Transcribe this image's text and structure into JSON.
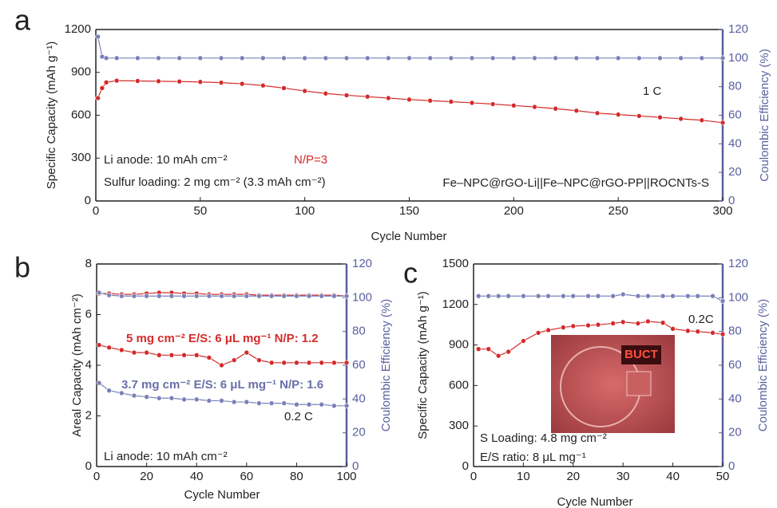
{
  "chart_data": [
    {
      "type": "line",
      "panel_label": "a",
      "xlabel": "Cycle Number",
      "ylabel": "Specific Capacity (mAh g⁻¹)",
      "y2label": "Coulombic Efficiency (%)",
      "x": [
        1,
        3,
        5,
        10,
        20,
        30,
        40,
        50,
        60,
        70,
        80,
        90,
        100,
        110,
        120,
        130,
        140,
        150,
        160,
        170,
        180,
        190,
        200,
        210,
        220,
        230,
        240,
        250,
        260,
        270,
        280,
        290,
        300
      ],
      "series": [
        {
          "color": "#d42a2a",
          "values": [
            720,
            790,
            830,
            842,
            840,
            838,
            836,
            833,
            828,
            820,
            808,
            790,
            770,
            752,
            740,
            730,
            720,
            710,
            702,
            695,
            687,
            678,
            668,
            658,
            646,
            632,
            615,
            605,
            595,
            585,
            575,
            565,
            548
          ]
        },
        {
          "color": "#7b80b8",
          "axis": "y2",
          "values": [
            115,
            101,
            100,
            100,
            100,
            100,
            100,
            100,
            100,
            100,
            100,
            100,
            100,
            100,
            100,
            100,
            100,
            100,
            100,
            100,
            100,
            100,
            100,
            100,
            100,
            100,
            100,
            100,
            100,
            100,
            100,
            100,
            100
          ]
        }
      ],
      "xlim": [
        0,
        300
      ],
      "xticks": [
        0,
        50,
        100,
        150,
        200,
        250,
        300
      ],
      "ylim": [
        0,
        1200
      ],
      "yticks": [
        0,
        300,
        600,
        900,
        1200
      ],
      "y2lim": [
        0,
        120
      ],
      "y2ticks": [
        0,
        20,
        40,
        60,
        80,
        100,
        120
      ],
      "annotations": [
        {
          "text": "1 C",
          "color": "#222222"
        },
        {
          "text": "Li anode: 10 mAh cm⁻²",
          "color": "#222222"
        },
        {
          "text": "N/P=3",
          "color": "#d42a2a"
        },
        {
          "text": "Sulfur loading: 2 mg cm⁻² (3.3 mAh cm⁻²)",
          "color": "#222222"
        },
        {
          "text": "Fe–NPC@rGO-Li||Fe–NPC@rGO-PP||ROCNTs-S",
          "color": "#222222"
        }
      ]
    },
    {
      "type": "line",
      "panel_label": "b",
      "xlabel": "Cycle Number",
      "ylabel": "Areal Capacity (mAh cm⁻²)",
      "y2label": "Coulombic Efficiency (%)",
      "x": [
        1,
        5,
        10,
        15,
        20,
        25,
        30,
        35,
        40,
        45,
        50,
        55,
        60,
        65,
        70,
        75,
        80,
        85,
        90,
        95,
        100
      ],
      "series": [
        {
          "color": "#d42a2a",
          "values": [
            4.8,
            4.7,
            4.6,
            4.5,
            4.5,
            4.4,
            4.4,
            4.4,
            4.4,
            4.3,
            4.0,
            4.2,
            4.5,
            4.2,
            4.1,
            4.1,
            4.1,
            4.1,
            4.1,
            4.1,
            4.1
          ]
        },
        {
          "color": "#7b80b8",
          "values": [
            3.3,
            3.0,
            2.9,
            2.8,
            2.75,
            2.7,
            2.7,
            2.65,
            2.65,
            2.6,
            2.6,
            2.55,
            2.55,
            2.5,
            2.5,
            2.5,
            2.45,
            2.45,
            2.45,
            2.4,
            2.4
          ]
        },
        {
          "color": "#d42a2a",
          "axis": "y2",
          "values": [
            102.5,
            102.5,
            102,
            102,
            102.5,
            103,
            103,
            102.5,
            102.5,
            102,
            102,
            102,
            102,
            101.5,
            101.5,
            101.5,
            101.5,
            101.5,
            101.5,
            101.5,
            101
          ]
        },
        {
          "color": "#7b80b8",
          "axis": "y2",
          "values": [
            103,
            101.5,
            101,
            101,
            101,
            101,
            101,
            101,
            101,
            101,
            101,
            101,
            101,
            101,
            101,
            101,
            101,
            101,
            101,
            101,
            101
          ]
        }
      ],
      "xlim": [
        0,
        100
      ],
      "xticks": [
        0,
        20,
        40,
        60,
        80,
        100
      ],
      "ylim": [
        0,
        8
      ],
      "yticks": [
        0,
        2,
        4,
        6,
        8
      ],
      "y2lim": [
        0,
        120
      ],
      "y2ticks": [
        0,
        20,
        40,
        60,
        80,
        100,
        120
      ],
      "annotations": [
        {
          "text": "5 mg cm⁻² E/S: 6 μL mg⁻¹ N/P: 1.2",
          "color": "#d42a2a"
        },
        {
          "text": "3.7 mg cm⁻² E/S: 6 μL mg⁻¹ N/P: 1.6",
          "color": "#6a6fa8"
        },
        {
          "text": "0.2 C",
          "color": "#222222"
        },
        {
          "text": "Li anode: 10 mAh cm⁻²",
          "color": "#222222"
        }
      ]
    },
    {
      "type": "line",
      "panel_label": "c",
      "xlabel": "Cycle Number",
      "ylabel": "Specific Capacity (mAh g⁻¹)",
      "y2label": "Coulombic Efficiency (%)",
      "x": [
        1,
        3,
        5,
        7,
        10,
        13,
        15,
        18,
        20,
        23,
        25,
        28,
        30,
        33,
        35,
        38,
        40,
        43,
        45,
        48,
        50
      ],
      "series": [
        {
          "color": "#d42a2a",
          "values": [
            870,
            870,
            820,
            850,
            930,
            990,
            1010,
            1030,
            1040,
            1045,
            1050,
            1060,
            1070,
            1060,
            1075,
            1065,
            1020,
            1005,
            1000,
            990,
            980
          ]
        },
        {
          "color": "#7b80b8",
          "axis": "y2",
          "values": [
            101,
            101,
            101,
            101,
            101,
            101,
            101,
            101,
            101,
            101,
            101,
            101,
            102,
            101,
            101,
            101,
            101,
            101,
            101,
            101,
            98
          ]
        }
      ],
      "xlim": [
        0,
        50
      ],
      "xticks": [
        0,
        10,
        20,
        30,
        40,
        50
      ],
      "ylim": [
        0,
        1500
      ],
      "yticks": [
        0,
        300,
        600,
        900,
        1200,
        1500
      ],
      "y2lim": [
        0,
        120
      ],
      "y2ticks": [
        0,
        20,
        40,
        60,
        80,
        100,
        120
      ],
      "annotations": [
        {
          "text": "0.2C",
          "color": "#222222"
        },
        {
          "text": "S Loading: 4.8 mg cm⁻²",
          "color": "#222222"
        },
        {
          "text": "E/S ratio: 8 μL mg⁻¹",
          "color": "#222222"
        }
      ],
      "inset_text": "BUCT"
    }
  ]
}
